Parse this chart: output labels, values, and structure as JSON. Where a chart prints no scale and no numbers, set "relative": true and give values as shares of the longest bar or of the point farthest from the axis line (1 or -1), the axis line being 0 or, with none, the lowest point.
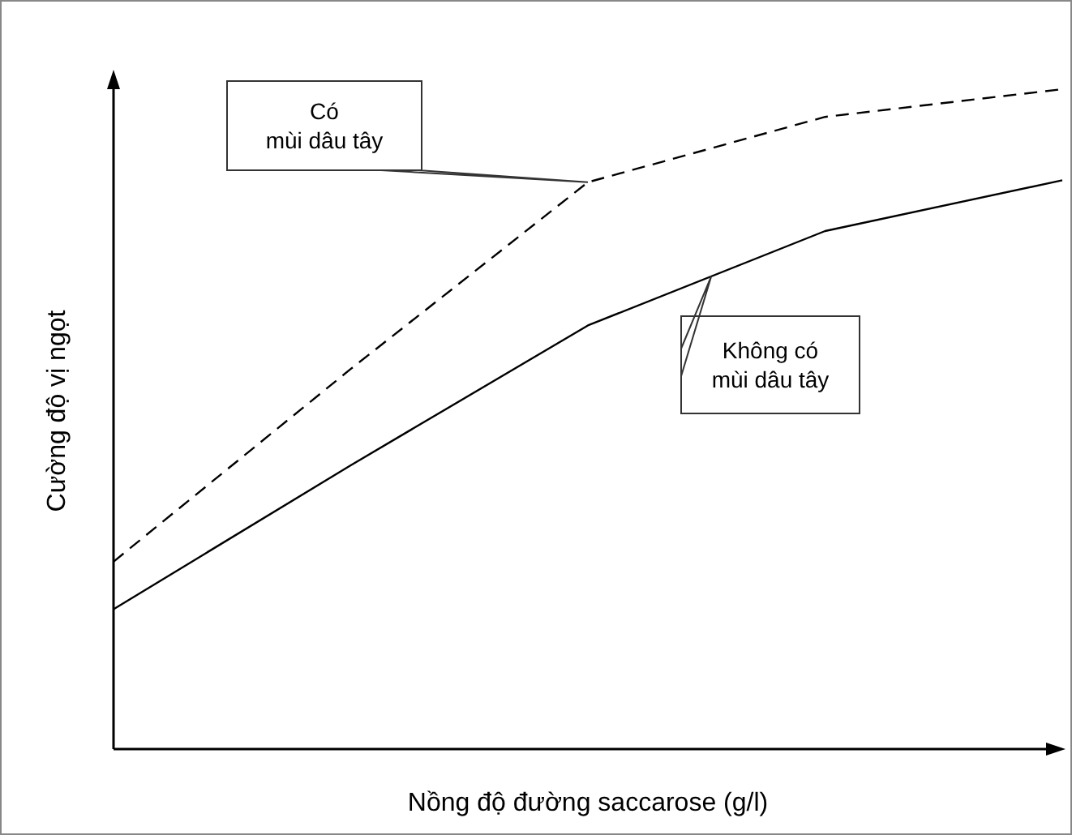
{
  "chart_data": {
    "type": "line",
    "relative": true,
    "xlabel": "Nồng độ đường saccarose (g/l)",
    "ylabel": "Cường độ vị ngọt",
    "categories": [
      null,
      null,
      null,
      null,
      null
    ],
    "series": [
      {
        "name": "Có\nmùi dâu tây",
        "color": "#000000",
        "line_style": "dashed",
        "values": [
          0.284,
          0.576,
          0.859,
          0.958,
          1
        ]
      },
      {
        "name": "Không có\nmùi dâu tây",
        "color": "#000000",
        "line_style": "solid",
        "values": [
          0.212,
          0.43,
          0.642,
          0.785,
          0.862
        ]
      }
    ],
    "marker": "none",
    "grid": false,
    "legend": false
  }
}
